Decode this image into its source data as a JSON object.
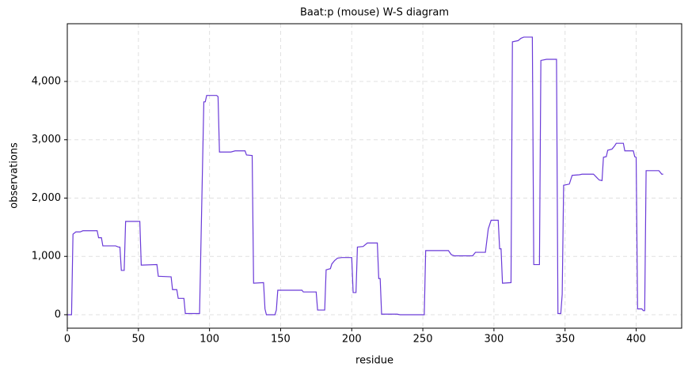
{
  "chart_data": {
    "type": "line",
    "title": "Baat:p (mouse) W-S diagram",
    "xlabel": "residue",
    "ylabel": "observations",
    "color": "#6a3ad8",
    "grid": true,
    "xlim": [
      0,
      432
    ],
    "ylim": [
      -231,
      4990
    ],
    "xticks": [
      0,
      50,
      100,
      150,
      200,
      250,
      300,
      350,
      400
    ],
    "yticks": [
      0,
      {
        "value": 1000,
        "label": "1,000"
      },
      {
        "value": 2000,
        "label": "2,000"
      },
      {
        "value": 3000,
        "label": "3,000"
      },
      {
        "value": 4000,
        "label": "4,000"
      }
    ],
    "x": [
      0,
      3,
      4,
      6,
      9,
      11,
      21,
      22,
      24,
      25,
      34,
      36,
      37,
      38,
      40,
      41,
      51,
      52,
      63,
      64,
      73,
      74,
      77,
      78,
      82,
      83,
      93,
      96,
      97,
      98,
      105,
      106,
      107,
      115,
      118,
      125,
      126,
      130,
      131,
      138,
      139,
      140,
      146,
      147,
      148,
      165,
      166,
      175,
      176,
      181,
      182,
      185,
      186,
      188,
      190,
      193,
      200,
      201,
      203,
      204,
      208,
      211,
      218,
      219,
      220,
      221,
      232,
      234,
      251,
      252,
      268,
      270,
      272,
      285,
      287,
      294,
      296,
      298,
      303,
      304,
      305,
      306,
      312,
      313,
      317,
      319,
      321,
      327,
      328,
      332,
      333,
      337,
      344,
      345,
      347,
      348,
      349,
      353,
      355,
      360,
      362,
      370,
      372,
      374,
      376,
      377,
      379,
      380,
      383,
      385,
      386,
      391,
      392,
      398,
      399,
      400,
      401,
      404,
      405,
      406,
      407,
      416,
      418,
      419
    ],
    "values": [
      0,
      0,
      1380,
      1420,
      1420,
      1440,
      1440,
      1320,
      1320,
      1180,
      1180,
      1160,
      1160,
      760,
      760,
      1600,
      1600,
      850,
      860,
      660,
      650,
      430,
      430,
      280,
      280,
      20,
      20,
      3650,
      3650,
      3760,
      3760,
      3740,
      2790,
      2790,
      2810,
      2810,
      2740,
      2730,
      540,
      550,
      100,
      0,
      0,
      80,
      420,
      420,
      390,
      390,
      80,
      80,
      770,
      790,
      870,
      930,
      970,
      980,
      980,
      380,
      380,
      1160,
      1170,
      1230,
      1230,
      620,
      620,
      10,
      10,
      0,
      0,
      1100,
      1100,
      1030,
      1010,
      1010,
      1070,
      1070,
      1470,
      1620,
      1620,
      1130,
      1130,
      540,
      550,
      4680,
      4700,
      4740,
      4760,
      4760,
      860,
      860,
      4360,
      4380,
      4380,
      20,
      20,
      350,
      2220,
      2240,
      2390,
      2400,
      2410,
      2410,
      2360,
      2310,
      2300,
      2700,
      2710,
      2820,
      2840,
      2900,
      2940,
      2940,
      2810,
      2810,
      2710,
      2700,
      100,
      100,
      70,
      70,
      2470,
      2470,
      2410,
      2410
    ]
  }
}
